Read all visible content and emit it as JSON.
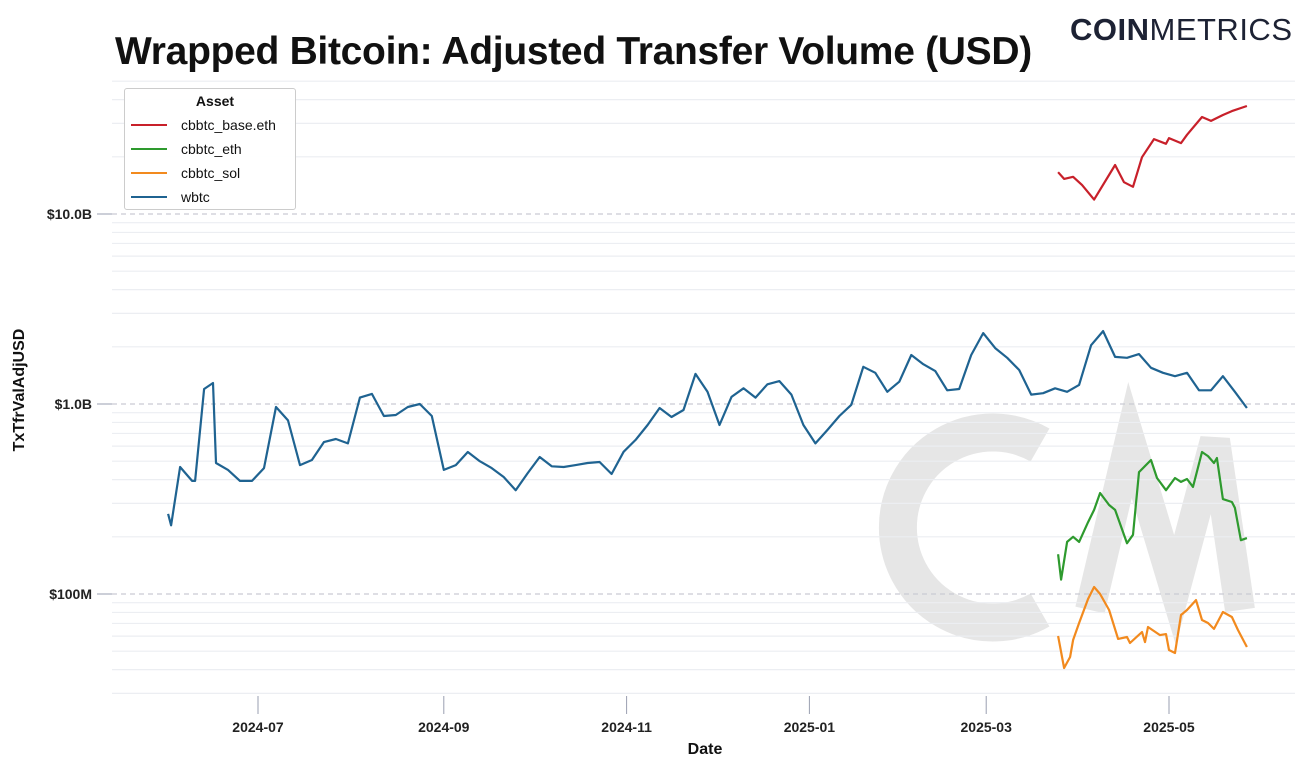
{
  "chart_data": {
    "type": "line",
    "title": "Wrapped Bitcoin: Adjusted Transfer Volume (USD)",
    "xlabel": "Date",
    "ylabel": "TxTfrValAdjUSD",
    "yscale": "log",
    "ylim": [
      30000000.0,
      50000000000.0
    ],
    "xlim": [
      "2024-05-13",
      "2025-06-11"
    ],
    "y_ticks": [
      {
        "value": 100000000.0,
        "label": "$100M"
      },
      {
        "value": 1000000000.0,
        "label": "$1.0B"
      },
      {
        "value": 10000000000.0,
        "label": "$10.0B"
      }
    ],
    "x_ticks": [
      "2024-07",
      "2024-09",
      "2024-11",
      "2025-01",
      "2025-03",
      "2025-05"
    ],
    "grid": true,
    "legend": {
      "title": "Asset",
      "placement": "top-left"
    },
    "series": [
      {
        "name": "cbbtc_base.eth",
        "color": "#c8202a",
        "x": [
          "2025-03-25",
          "2025-03-27",
          "2025-03-30",
          "2025-04-02",
          "2025-04-06",
          "2025-04-13",
          "2025-04-16",
          "2025-04-19",
          "2025-04-22",
          "2025-04-26",
          "2025-04-30",
          "2025-05-01",
          "2025-05-05",
          "2025-05-07",
          "2025-05-12",
          "2025-05-15",
          "2025-05-19",
          "2025-05-22",
          "2025-05-27"
        ],
        "y": [
          16600000000.0,
          15300000000.0,
          15700000000.0,
          14200000000.0,
          11900000000.0,
          18100000000.0,
          14700000000.0,
          13900000000.0,
          19900000000.0,
          24800000000.0,
          23400000000.0,
          25100000000.0,
          23600000000.0,
          26100000000.0,
          32400000000.0,
          30900000000.0,
          33200000000.0,
          34800000000.0,
          37000000000.0
        ]
      },
      {
        "name": "cbbtc_eth",
        "color": "#2e9a2e",
        "x": [
          "2025-03-25",
          "2025-03-26",
          "2025-03-28",
          "2025-03-30",
          "2025-04-01",
          "2025-04-04",
          "2025-04-06",
          "2025-04-08",
          "2025-04-11",
          "2025-04-13",
          "2025-04-17",
          "2025-04-19",
          "2025-04-21",
          "2025-04-25",
          "2025-04-27",
          "2025-04-30",
          "2025-05-03",
          "2025-05-05",
          "2025-05-07",
          "2025-05-09",
          "2025-05-12",
          "2025-05-14",
          "2025-05-16",
          "2025-05-17",
          "2025-05-19",
          "2025-05-22",
          "2025-05-23",
          "2025-05-25",
          "2025-05-27"
        ],
        "y": [
          162000000.0,
          119000000.0,
          188000000.0,
          200000000.0,
          188000000.0,
          239000000.0,
          277000000.0,
          340000000.0,
          294000000.0,
          277000000.0,
          185000000.0,
          205000000.0,
          438000000.0,
          507000000.0,
          408000000.0,
          352000000.0,
          408000000.0,
          389000000.0,
          403000000.0,
          366000000.0,
          559000000.0,
          532000000.0,
          489000000.0,
          520000000.0,
          316000000.0,
          305000000.0,
          284000000.0,
          192000000.0,
          197000000.0
        ]
      },
      {
        "name": "cbbtc_sol",
        "color": "#f28a1e",
        "x": [
          "2025-03-25",
          "2025-03-27",
          "2025-03-29",
          "2025-03-30",
          "2025-04-01",
          "2025-04-04",
          "2025-04-06",
          "2025-04-08",
          "2025-04-11",
          "2025-04-14",
          "2025-04-17",
          "2025-04-18",
          "2025-04-22",
          "2025-04-23",
          "2025-04-24",
          "2025-04-28",
          "2025-04-30",
          "2025-05-01",
          "2025-05-03",
          "2025-05-05",
          "2025-05-07",
          "2025-05-10",
          "2025-05-12",
          "2025-05-14",
          "2025-05-16",
          "2025-05-19",
          "2025-05-22",
          "2025-05-24",
          "2025-05-27"
        ],
        "y": [
          60100000.0,
          40800000.0,
          46600000.0,
          57300000.0,
          70400000.0,
          94200000.0,
          108900000.0,
          100000000.0,
          82400000.0,
          58000000.0,
          59400000.0,
          55200000.0,
          63100000.0,
          55800000.0,
          67000000.0,
          60800000.0,
          61500000.0,
          50700000.0,
          48900000.0,
          77500000.0,
          82400000.0,
          92900000.0,
          73000000.0,
          70400000.0,
          65500000.0,
          80400000.0,
          75700000.0,
          64700000.0,
          52600000.0
        ]
      },
      {
        "name": "wbtc",
        "color": "#1f6391",
        "x": [
          "2024-06-01",
          "2024-06-02",
          "2024-06-05",
          "2024-06-09",
          "2024-06-10",
          "2024-06-13",
          "2024-06-16",
          "2024-06-17",
          "2024-06-21",
          "2024-06-25",
          "2024-06-29",
          "2024-07-03",
          "2024-07-07",
          "2024-07-11",
          "2024-07-15",
          "2024-07-19",
          "2024-07-23",
          "2024-07-27",
          "2024-07-31",
          "2024-08-04",
          "2024-08-08",
          "2024-08-12",
          "2024-08-16",
          "2024-08-20",
          "2024-08-24",
          "2024-08-28",
          "2024-09-01",
          "2024-09-05",
          "2024-09-09",
          "2024-09-13",
          "2024-09-17",
          "2024-09-21",
          "2024-09-25",
          "2024-09-29",
          "2024-10-03",
          "2024-10-07",
          "2024-10-11",
          "2024-10-15",
          "2024-10-19",
          "2024-10-23",
          "2024-10-27",
          "2024-10-31",
          "2024-11-04",
          "2024-11-08",
          "2024-11-12",
          "2024-11-16",
          "2024-11-20",
          "2024-11-24",
          "2024-11-28",
          "2024-12-02",
          "2024-12-06",
          "2024-12-10",
          "2024-12-14",
          "2024-12-18",
          "2024-12-22",
          "2024-12-26",
          "2024-12-30",
          "2025-01-03",
          "2025-01-07",
          "2025-01-11",
          "2025-01-15",
          "2025-01-19",
          "2025-01-23",
          "2025-01-27",
          "2025-01-31",
          "2025-02-04",
          "2025-02-08",
          "2025-02-12",
          "2025-02-16",
          "2025-02-20",
          "2025-02-24",
          "2025-02-28",
          "2025-03-04",
          "2025-03-08",
          "2025-03-12",
          "2025-03-16",
          "2025-03-20",
          "2025-03-24",
          "2025-03-28",
          "2025-04-01",
          "2025-04-05",
          "2025-04-09",
          "2025-04-13",
          "2025-04-17",
          "2025-04-21",
          "2025-04-25",
          "2025-04-29",
          "2025-05-03",
          "2025-05-07",
          "2025-05-11",
          "2025-05-15",
          "2025-05-19",
          "2025-05-23",
          "2025-05-27"
        ],
        "y": [
          264000000.0,
          230000000.0,
          466000000.0,
          394000000.0,
          394000000.0,
          1200000000.0,
          1290000000.0,
          489000000.0,
          450000000.0,
          394000000.0,
          394000000.0,
          460000000.0,
          964000000.0,
          820000000.0,
          477000000.0,
          507000000.0,
          630000000.0,
          654000000.0,
          620000000.0,
          1080000000.0,
          1130000000.0,
          865000000.0,
          875000000.0,
          964000000.0,
          1000000000.0,
          865000000.0,
          450000000.0,
          477000000.0,
          559000000.0,
          500000000.0,
          460000000.0,
          413000000.0,
          352000000.0,
          433000000.0,
          526000000.0,
          470000000.0,
          466000000.0,
          477000000.0,
          489000000.0,
          495000000.0,
          428000000.0,
          560000000.0,
          647000000.0,
          775000000.0,
          953000000.0,
          854000000.0,
          930000000.0,
          1440000000.0,
          1160000000.0,
          775000000.0,
          1090000000.0,
          1210000000.0,
          1080000000.0,
          1270000000.0,
          1320000000.0,
          1120000000.0,
          775000000.0,
          620000000.0,
          730000000.0,
          865000000.0,
          990000000.0,
          1570000000.0,
          1460000000.0,
          1160000000.0,
          1310000000.0,
          1810000000.0,
          1620000000.0,
          1490000000.0,
          1180000000.0,
          1200000000.0,
          1810000000.0,
          2360000000.0,
          1970000000.0,
          1750000000.0,
          1510000000.0,
          1120000000.0,
          1140000000.0,
          1210000000.0,
          1160000000.0,
          1260000000.0,
          2040000000.0,
          2420000000.0,
          1770000000.0,
          1750000000.0,
          1830000000.0,
          1550000000.0,
          1460000000.0,
          1400000000.0,
          1460000000.0,
          1180000000.0,
          1180000000.0,
          1400000000.0,
          1160000000.0,
          953000000.0
        ]
      }
    ]
  },
  "branding": {
    "logo_text": "COINMETRICS",
    "logo_bold": "COIN",
    "logo_light": "METRICS",
    "watermark": "CM"
  }
}
